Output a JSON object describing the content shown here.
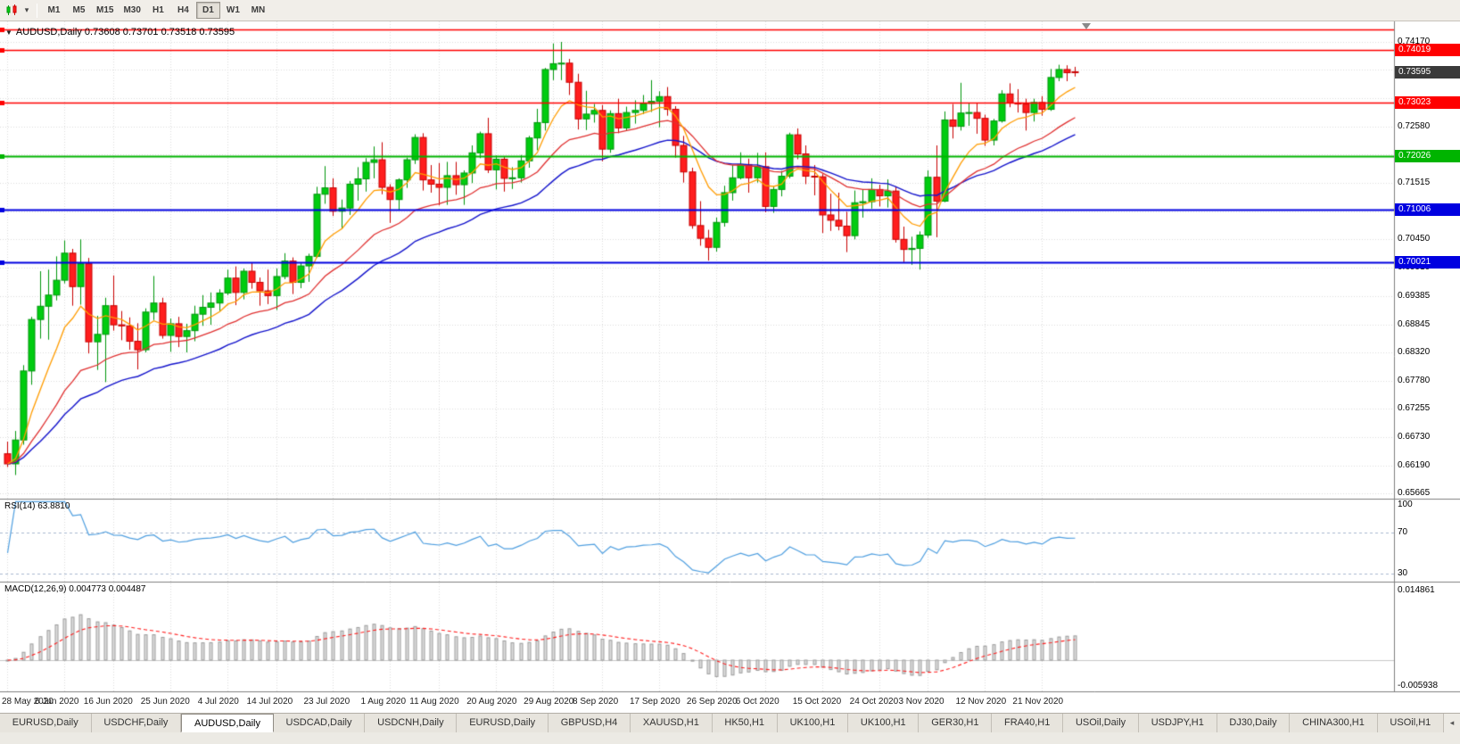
{
  "toolbar": {
    "timeframes": [
      "M1",
      "M5",
      "M15",
      "M30",
      "H1",
      "H4",
      "D1",
      "W1",
      "MN"
    ],
    "active_timeframe": "D1"
  },
  "chart": {
    "title": "AUDUSD,Daily 0.73608 0.73701 0.73518 0.73595",
    "current_price": "0.73595",
    "axis_ticks": [
      "0.74170",
      "0.72580",
      "0.71515",
      "0.70450",
      "0.69910",
      "0.69385",
      "0.68845",
      "0.68320",
      "0.67780",
      "0.67255",
      "0.66730",
      "0.66190",
      "0.65665"
    ]
  },
  "chart_data": {
    "type": "candlestick",
    "symbol": "AUDUSD",
    "timeframe": "Daily",
    "ohlc_current": {
      "open": 0.73608,
      "high": 0.73701,
      "low": 0.73518,
      "close": 0.73595
    },
    "y_range": [
      0.6556,
      0.7441
    ],
    "grid_prices": [
      0.7417,
      0.73645,
      0.7311,
      0.7258,
      0.7205,
      0.71515,
      0.7098,
      0.7045,
      0.6991,
      0.69385,
      0.68845,
      0.6832,
      0.6778,
      0.67255,
      0.6673,
      0.6619,
      0.65665
    ],
    "hlines": [
      {
        "price": 0.74405,
        "label": "",
        "color": "#FF0000"
      },
      {
        "price": 0.74019,
        "label": "0.74019",
        "color": "#FF0000"
      },
      {
        "price": 0.73023,
        "label": "0.73023",
        "color": "#FF0000"
      },
      {
        "price": 0.72026,
        "label": "0.72026",
        "color": "#00B400"
      },
      {
        "price": 0.71006,
        "label": "0.71006",
        "color": "#0000E0"
      },
      {
        "price": 0.70021,
        "label": "0.70021",
        "color": "#0000E0"
      }
    ],
    "moving_averages": [
      {
        "name": "fast",
        "color": "#FF9C00"
      },
      {
        "name": "medium",
        "color": "#E03030"
      },
      {
        "name": "slow",
        "color": "#1414CC"
      }
    ],
    "date_labels": [
      {
        "text": "28 May 2020",
        "index": 0
      },
      {
        "text": "6 Jun 2020",
        "index": 7
      },
      {
        "text": "16 Jun 2020",
        "index": 13
      },
      {
        "text": "25 Jun 2020",
        "index": 20
      },
      {
        "text": "4 Jul 2020",
        "index": 27
      },
      {
        "text": "14 Jul 2020",
        "index": 33
      },
      {
        "text": "23 Jul 2020",
        "index": 40
      },
      {
        "text": "1 Aug 2020",
        "index": 47
      },
      {
        "text": "11 Aug 2020",
        "index": 53
      },
      {
        "text": "20 Aug 2020",
        "index": 60
      },
      {
        "text": "29 Aug 2020",
        "index": 67
      },
      {
        "text": "8 Sep 2020",
        "index": 73
      },
      {
        "text": "17 Sep 2020",
        "index": 80
      },
      {
        "text": "26 Sep 2020",
        "index": 87
      },
      {
        "text": "6 Oct 2020",
        "index": 93
      },
      {
        "text": "15 Oct 2020",
        "index": 100
      },
      {
        "text": "24 Oct 2020",
        "index": 107
      },
      {
        "text": "3 Nov 2020",
        "index": 113
      },
      {
        "text": "12 Nov 2020",
        "index": 120
      },
      {
        "text": "21 Nov 2020",
        "index": 127
      }
    ],
    "candles": [
      [
        0.6641,
        0.6664,
        0.6616,
        0.6622
      ],
      [
        0.6622,
        0.6684,
        0.6601,
        0.6667
      ],
      [
        0.6667,
        0.6808,
        0.6658,
        0.6797
      ],
      [
        0.6797,
        0.6899,
        0.6771,
        0.6894
      ],
      [
        0.6894,
        0.6985,
        0.6858,
        0.6919
      ],
      [
        0.6919,
        0.6988,
        0.6856,
        0.694
      ],
      [
        0.694,
        0.7013,
        0.693,
        0.6968
      ],
      [
        0.6968,
        0.7043,
        0.6962,
        0.7019
      ],
      [
        0.7019,
        0.7027,
        0.692,
        0.6956
      ],
      [
        0.6956,
        0.7045,
        0.6922,
        0.6999
      ],
      [
        0.6999,
        0.701,
        0.683,
        0.6852
      ],
      [
        0.6852,
        0.6901,
        0.6799,
        0.6866
      ],
      [
        0.6866,
        0.6935,
        0.6776,
        0.692
      ],
      [
        0.692,
        0.6977,
        0.6873,
        0.6884
      ],
      [
        0.6884,
        0.691,
        0.6855,
        0.6882
      ],
      [
        0.6882,
        0.6898,
        0.6837,
        0.6853
      ],
      [
        0.6853,
        0.6887,
        0.68,
        0.6837
      ],
      [
        0.6837,
        0.6915,
        0.6832,
        0.6908
      ],
      [
        0.6908,
        0.6976,
        0.6893,
        0.6925
      ],
      [
        0.6925,
        0.6935,
        0.6858,
        0.6864
      ],
      [
        0.6864,
        0.6896,
        0.6833,
        0.6886
      ],
      [
        0.6886,
        0.6899,
        0.6842,
        0.6862
      ],
      [
        0.6862,
        0.6886,
        0.6832,
        0.6873
      ],
      [
        0.6873,
        0.692,
        0.6853,
        0.6904
      ],
      [
        0.6904,
        0.694,
        0.6882,
        0.6917
      ],
      [
        0.6917,
        0.6945,
        0.6884,
        0.6925
      ],
      [
        0.6925,
        0.6951,
        0.691,
        0.6944
      ],
      [
        0.6944,
        0.6988,
        0.694,
        0.6972
      ],
      [
        0.6972,
        0.6994,
        0.6921,
        0.6945
      ],
      [
        0.6945,
        0.699,
        0.6932,
        0.6985
      ],
      [
        0.6985,
        0.7001,
        0.6952,
        0.6964
      ],
      [
        0.6964,
        0.6973,
        0.692,
        0.6948
      ],
      [
        0.6948,
        0.6988,
        0.6923,
        0.6939
      ],
      [
        0.6939,
        0.699,
        0.6912,
        0.6975
      ],
      [
        0.6975,
        0.7019,
        0.697,
        0.7004
      ],
      [
        0.7004,
        0.7011,
        0.6942,
        0.6964
      ],
      [
        0.6964,
        0.7,
        0.6953,
        0.6995
      ],
      [
        0.6995,
        0.7018,
        0.6965,
        0.7013
      ],
      [
        0.7013,
        0.7144,
        0.701,
        0.713
      ],
      [
        0.713,
        0.7183,
        0.7112,
        0.7142
      ],
      [
        0.7142,
        0.716,
        0.7089,
        0.7098
      ],
      [
        0.7098,
        0.712,
        0.7064,
        0.7104
      ],
      [
        0.7104,
        0.7155,
        0.7091,
        0.7149
      ],
      [
        0.7149,
        0.7181,
        0.7118,
        0.7159
      ],
      [
        0.7159,
        0.7198,
        0.7135,
        0.719
      ],
      [
        0.719,
        0.722,
        0.716,
        0.7195
      ],
      [
        0.7195,
        0.7228,
        0.713,
        0.7143
      ],
      [
        0.7143,
        0.7149,
        0.7076,
        0.712
      ],
      [
        0.712,
        0.716,
        0.71,
        0.7157
      ],
      [
        0.7157,
        0.7199,
        0.7142,
        0.7195
      ],
      [
        0.7195,
        0.7243,
        0.7187,
        0.7237
      ],
      [
        0.7237,
        0.7245,
        0.7137,
        0.7157
      ],
      [
        0.7157,
        0.7185,
        0.7133,
        0.7149
      ],
      [
        0.7149,
        0.7189,
        0.7109,
        0.7143
      ],
      [
        0.7143,
        0.7191,
        0.711,
        0.7165
      ],
      [
        0.7165,
        0.7191,
        0.7129,
        0.7148
      ],
      [
        0.7148,
        0.7175,
        0.711,
        0.717
      ],
      [
        0.717,
        0.7222,
        0.7151,
        0.7208
      ],
      [
        0.7208,
        0.7248,
        0.7198,
        0.7244
      ],
      [
        0.7244,
        0.7274,
        0.717,
        0.7176
      ],
      [
        0.7176,
        0.7203,
        0.7139,
        0.7196
      ],
      [
        0.7196,
        0.7201,
        0.7135,
        0.716
      ],
      [
        0.716,
        0.7181,
        0.714,
        0.7161
      ],
      [
        0.7161,
        0.7204,
        0.7152,
        0.7193
      ],
      [
        0.7193,
        0.724,
        0.718,
        0.7236
      ],
      [
        0.7236,
        0.7291,
        0.7213,
        0.7265
      ],
      [
        0.7265,
        0.7368,
        0.725,
        0.7365
      ],
      [
        0.7365,
        0.7414,
        0.7345,
        0.7376
      ],
      [
        0.7376,
        0.7417,
        0.7345,
        0.7377
      ],
      [
        0.7377,
        0.7385,
        0.7317,
        0.7341
      ],
      [
        0.7341,
        0.7357,
        0.7252,
        0.7272
      ],
      [
        0.7272,
        0.7325,
        0.7251,
        0.7281
      ],
      [
        0.7281,
        0.73,
        0.7265,
        0.7288
      ],
      [
        0.7288,
        0.7298,
        0.7192,
        0.7215
      ],
      [
        0.7215,
        0.7288,
        0.7208,
        0.7282
      ],
      [
        0.7282,
        0.731,
        0.7245,
        0.7255
      ],
      [
        0.7255,
        0.7295,
        0.725,
        0.7284
      ],
      [
        0.7284,
        0.7307,
        0.7263,
        0.7288
      ],
      [
        0.7288,
        0.7317,
        0.7281,
        0.7301
      ],
      [
        0.7301,
        0.7345,
        0.7285,
        0.7305
      ],
      [
        0.7305,
        0.7324,
        0.7256,
        0.7314
      ],
      [
        0.7314,
        0.7332,
        0.7278,
        0.729
      ],
      [
        0.729,
        0.7296,
        0.7199,
        0.7222
      ],
      [
        0.7222,
        0.724,
        0.7152,
        0.7172
      ],
      [
        0.7172,
        0.718,
        0.7065,
        0.7071
      ],
      [
        0.7071,
        0.7117,
        0.7033,
        0.7047
      ],
      [
        0.7047,
        0.7063,
        0.7005,
        0.703
      ],
      [
        0.703,
        0.7086,
        0.7022,
        0.7077
      ],
      [
        0.7077,
        0.7146,
        0.7069,
        0.7133
      ],
      [
        0.7133,
        0.7185,
        0.7118,
        0.7161
      ],
      [
        0.7161,
        0.7209,
        0.7158,
        0.7186
      ],
      [
        0.7186,
        0.7197,
        0.7133,
        0.7161
      ],
      [
        0.7161,
        0.7208,
        0.7152,
        0.7182
      ],
      [
        0.7182,
        0.7209,
        0.7096,
        0.7107
      ],
      [
        0.7107,
        0.7145,
        0.7095,
        0.7139
      ],
      [
        0.7139,
        0.7174,
        0.7126,
        0.7164
      ],
      [
        0.7164,
        0.7246,
        0.716,
        0.7242
      ],
      [
        0.7242,
        0.7254,
        0.7196,
        0.7206
      ],
      [
        0.7206,
        0.7222,
        0.7149,
        0.7164
      ],
      [
        0.7164,
        0.7185,
        0.7128,
        0.7163
      ],
      [
        0.7163,
        0.7168,
        0.7057,
        0.7091
      ],
      [
        0.7091,
        0.7131,
        0.7061,
        0.7081
      ],
      [
        0.7081,
        0.7133,
        0.7062,
        0.707
      ],
      [
        0.707,
        0.7097,
        0.7021,
        0.7052
      ],
      [
        0.7052,
        0.7137,
        0.7045,
        0.7114
      ],
      [
        0.7114,
        0.7139,
        0.7086,
        0.7116
      ],
      [
        0.7116,
        0.716,
        0.7103,
        0.7139
      ],
      [
        0.7139,
        0.7148,
        0.7107,
        0.7127
      ],
      [
        0.7127,
        0.7158,
        0.7105,
        0.7136
      ],
      [
        0.7136,
        0.7145,
        0.7039,
        0.7045
      ],
      [
        0.7045,
        0.7069,
        0.7002,
        0.7026
      ],
      [
        0.7026,
        0.705,
        0.6997,
        0.7028
      ],
      [
        0.7028,
        0.706,
        0.6988,
        0.7053
      ],
      [
        0.7053,
        0.7175,
        0.7048,
        0.7162
      ],
      [
        0.7162,
        0.7222,
        0.7049,
        0.7117
      ],
      [
        0.7117,
        0.7286,
        0.7115,
        0.727
      ],
      [
        0.727,
        0.73,
        0.7235,
        0.7258
      ],
      [
        0.7258,
        0.734,
        0.725,
        0.7283
      ],
      [
        0.7283,
        0.7302,
        0.7259,
        0.7284
      ],
      [
        0.7284,
        0.7302,
        0.7244,
        0.7273
      ],
      [
        0.7273,
        0.728,
        0.7221,
        0.7232
      ],
      [
        0.7232,
        0.7272,
        0.7222,
        0.7268
      ],
      [
        0.7268,
        0.7326,
        0.7265,
        0.7319
      ],
      [
        0.7319,
        0.7339,
        0.7294,
        0.7302
      ],
      [
        0.7302,
        0.7328,
        0.7284,
        0.73
      ],
      [
        0.73,
        0.731,
        0.725,
        0.7284
      ],
      [
        0.7284,
        0.731,
        0.7267,
        0.7303
      ],
      [
        0.7303,
        0.7315,
        0.7278,
        0.729
      ],
      [
        0.729,
        0.7366,
        0.7287,
        0.735
      ],
      [
        0.735,
        0.7374,
        0.7343,
        0.7365
      ],
      [
        0.7365,
        0.7373,
        0.7343,
        0.7359
      ],
      [
        0.73608,
        0.73701,
        0.73518,
        0.73595
      ]
    ]
  },
  "rsi": {
    "label": "RSI(14) 63.8810",
    "value": "63.8810",
    "line_color": "#4F9FE0",
    "levels": [
      {
        "label": "100",
        "value": 100
      },
      {
        "label": "70",
        "value": 70
      },
      {
        "label": "30",
        "value": 30
      }
    ]
  },
  "macd": {
    "label": "MACD(12,26,9) 0.004773 0.004487",
    "macd_value": "0.004773",
    "signal_value": "0.004487",
    "scale": [
      {
        "label": "0.014861",
        "value": 0.014861
      },
      {
        "label": "-0.005938",
        "value": -0.005938
      }
    ]
  },
  "tabs": {
    "active_index": 2,
    "items": [
      "EURUSD,Daily",
      "USDCHF,Daily",
      "AUDUSD,Daily",
      "USDCAD,Daily",
      "USDCNH,Daily",
      "EURUSD,Daily",
      "GBPUSD,H4",
      "XAUUSD,H1",
      "HK50,H1",
      "UK100,H1",
      "UK100,H1",
      "GER30,H1",
      "FRA40,H1",
      "USOil,Daily",
      "USDJPY,H1",
      "DJ30,Daily",
      "CHINA300,H1",
      "USOil,H1"
    ],
    "scroll_left_icon": "◂"
  },
  "colors": {
    "up": "#00CC10",
    "up_border": "#00960C",
    "down": "#FF1E1E",
    "down_border": "#C80000",
    "grid": "#DCDCDC",
    "panel_border": "#7F7F7F",
    "badge_current": "#3A3A3A",
    "macd_hist_fill": "#DEDEDE",
    "macd_hist_border": "#9B9B9B",
    "macd_signal": "#FF2020",
    "rsi_level": "#A8B8D0"
  }
}
